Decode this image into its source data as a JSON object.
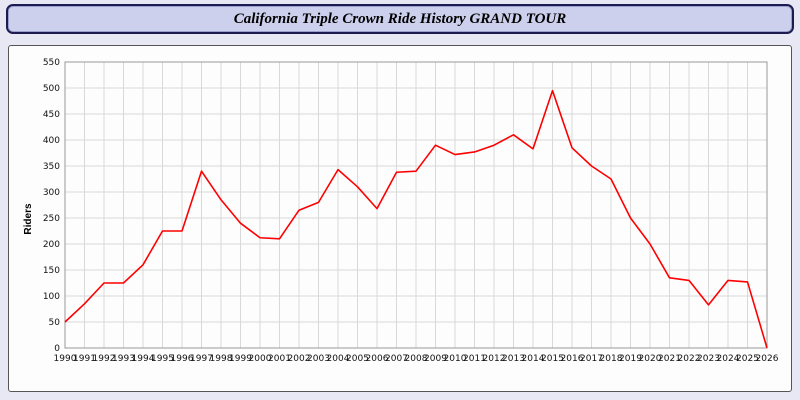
{
  "header": {
    "title": "California Triple Crown Ride History GRAND TOUR"
  },
  "colors": {
    "page_background": "#e8e8f4",
    "title_bar_fill": "#ccd0ec",
    "title_bar_border": "#1c1c50",
    "grid": "#d9d9d9",
    "plot_border": "#999999",
    "line": "#ff0000"
  },
  "chart_data": {
    "type": "line",
    "title": "California Triple Crown Ride History GRAND TOUR",
    "xlabel": "",
    "ylabel": "Riders",
    "ylim": [
      0,
      550
    ],
    "ytick_step": 50,
    "grid": true,
    "legend": "none",
    "line_color": "#ff0000",
    "x": [
      1990,
      1991,
      1992,
      1993,
      1994,
      1995,
      1996,
      1997,
      1998,
      1999,
      2000,
      2001,
      2002,
      2003,
      2004,
      2005,
      2006,
      2007,
      2008,
      2009,
      2010,
      2011,
      2012,
      2013,
      2014,
      2015,
      2016,
      2017,
      2018,
      2019,
      2020,
      2021,
      2022,
      2023,
      2024,
      2025,
      2026
    ],
    "values": [
      50,
      85,
      125,
      125,
      160,
      225,
      225,
      340,
      285,
      240,
      212,
      210,
      265,
      280,
      343,
      310,
      268,
      338,
      340,
      390,
      372,
      377,
      390,
      410,
      383,
      495,
      385,
      350,
      325,
      250,
      200,
      135,
      130,
      83,
      130,
      127,
      0
    ]
  }
}
